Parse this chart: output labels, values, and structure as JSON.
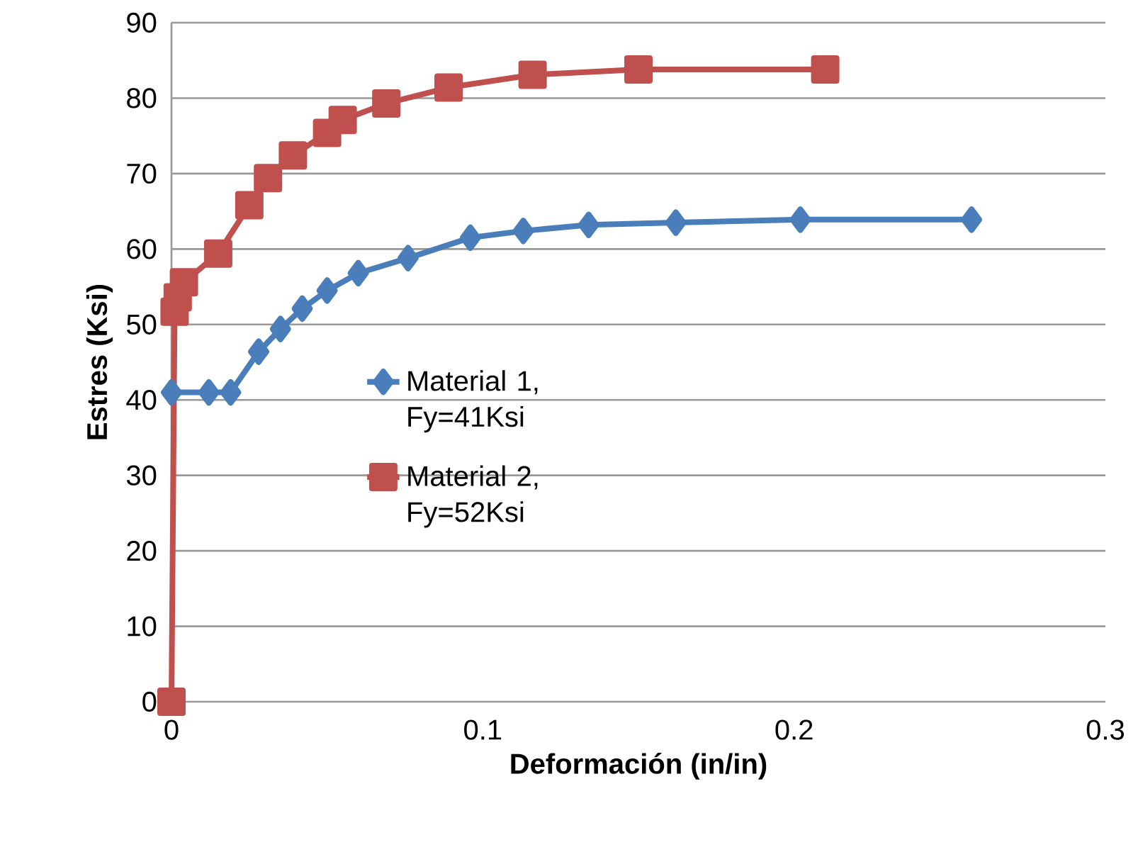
{
  "chart_data": {
    "type": "line",
    "xlabel": "Deformación (in/in)",
    "ylabel": "Estres (Ksi)",
    "xlim": [
      0,
      0.3
    ],
    "xticks": [
      0,
      0.1,
      0.2,
      0.3
    ],
    "ylim": [
      0,
      90
    ],
    "yticks": [
      0,
      10,
      20,
      30,
      40,
      50,
      60,
      70,
      80,
      90
    ],
    "grid": "y",
    "legend": "left",
    "series": [
      {
        "name": "Material 1, Fy=41Ksi",
        "color": "#4a7ebb",
        "marker": "diamond",
        "x": [
          0,
          0.012,
          0.019,
          0.028,
          0.035,
          0.042,
          0.05,
          0.06,
          0.076,
          0.096,
          0.113,
          0.134,
          0.162,
          0.202,
          0.257
        ],
        "values": [
          41,
          41,
          41,
          46.4,
          49.4,
          52.1,
          54.5,
          56.8,
          58.8,
          61.5,
          62.4,
          63.2,
          63.5,
          63.9,
          63.9
        ]
      },
      {
        "name": "Material 2, Fy=52Ksi",
        "color": "#c0504d",
        "marker": "square",
        "x": [
          0,
          0.001,
          0.002,
          0.004,
          0.015,
          0.025,
          0.031,
          0.039,
          0.05,
          0.055,
          0.069,
          0.089,
          0.116,
          0.15,
          0.21
        ],
        "values": [
          0,
          51.7,
          53.6,
          55.6,
          59.4,
          65.8,
          69.4,
          72.4,
          75.4,
          77.1,
          79.3,
          81.4,
          83.1,
          83.8,
          83.8
        ]
      }
    ]
  }
}
